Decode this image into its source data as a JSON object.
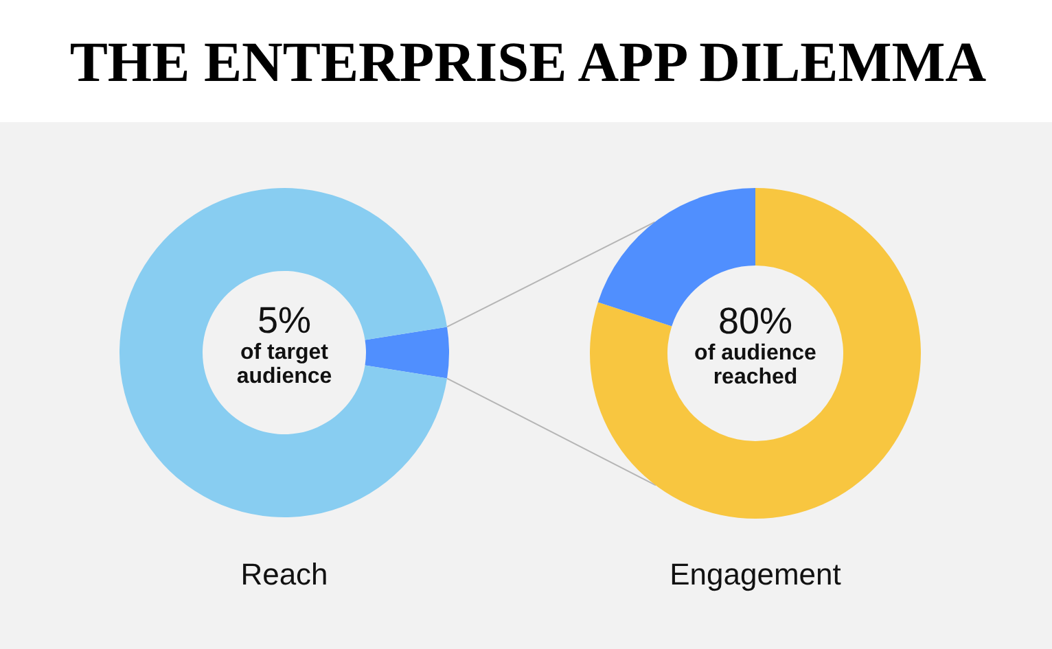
{
  "chart_data": [
    {
      "type": "donut",
      "title": "THE ENTERPRISE APP DILEMMA",
      "xlabel": "Reach",
      "categories": [
        null,
        null
      ],
      "values": [
        5,
        95
      ],
      "colors": [
        "#508ffe",
        "#88cdf1"
      ],
      "annotations": [
        "5%",
        "of target audience"
      ]
    },
    {
      "type": "donut",
      "xlabel": "Engagement",
      "categories": [
        null,
        null
      ],
      "values": [
        80,
        20
      ],
      "colors": [
        "#f8c640",
        "#508ffe"
      ],
      "annotations": [
        "80%",
        "of audience reached"
      ]
    }
  ]
}
